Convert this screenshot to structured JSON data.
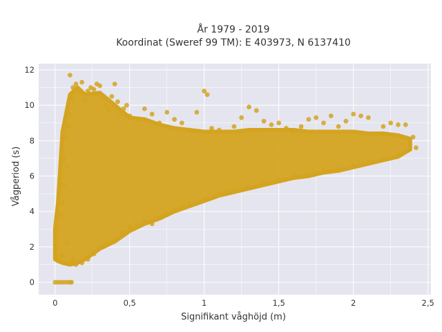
{
  "chart_data": {
    "type": "scatter",
    "title_lines": [
      "År 1979 - 2019",
      "Koordinat (Sweref 99 TM): E 403973, N 6137410"
    ],
    "xlabel": "Signifikant våghöjd (m)",
    "ylabel": "Vågperiod (s)",
    "xlim": [
      -0.11,
      2.52
    ],
    "ylim": [
      -0.7,
      12.35
    ],
    "x_ticks": [
      0,
      0.5,
      1,
      1.5,
      2,
      2.5
    ],
    "x_tick_labels": [
      "0",
      "0,5",
      "1",
      "1,5",
      "2",
      "2,5"
    ],
    "y_ticks": [
      0,
      2,
      4,
      6,
      8,
      10,
      12
    ],
    "y_tick_labels": [
      "0",
      "2",
      "4",
      "6",
      "8",
      "10",
      "12"
    ],
    "grid": true,
    "legend": "none",
    "marker_color": "#d4a420",
    "plot_background": "#e5e5ef",
    "series": [
      {
        "values_note": "",
        "points": [
          [
            0.0,
            0
          ],
          [
            0.02,
            0
          ],
          [
            0.04,
            0
          ],
          [
            0.06,
            0
          ],
          [
            0.08,
            0
          ],
          [
            0.1,
            0
          ],
          [
            0.11,
            0
          ],
          [
            0.01,
            1.4
          ],
          [
            0.01,
            2.0
          ],
          [
            0.01,
            2.6
          ],
          [
            0.02,
            3.0
          ],
          [
            0.03,
            1.2
          ],
          [
            0.04,
            3.8
          ],
          [
            0.05,
            1.5
          ],
          [
            0.05,
            4.5
          ],
          [
            0.06,
            5.5
          ],
          [
            0.06,
            7.0
          ],
          [
            0.07,
            8.2
          ],
          [
            0.07,
            9.0
          ],
          [
            0.08,
            2.2
          ],
          [
            0.08,
            6.5
          ],
          [
            0.09,
            8.8
          ],
          [
            0.1,
            9.5
          ],
          [
            0.1,
            1.1
          ],
          [
            0.11,
            10.4
          ],
          [
            0.12,
            1.3
          ],
          [
            0.12,
            11.0
          ],
          [
            0.1,
            11.7
          ],
          [
            0.14,
            11.2
          ],
          [
            0.16,
            10.8
          ],
          [
            0.18,
            11.3
          ],
          [
            0.2,
            10.3
          ],
          [
            0.22,
            10.8
          ],
          [
            0.24,
            11.0
          ],
          [
            0.26,
            10.9
          ],
          [
            0.28,
            11.2
          ],
          [
            0.3,
            11.1
          ],
          [
            0.32,
            10.4
          ],
          [
            0.34,
            10.0
          ],
          [
            0.36,
            9.8
          ],
          [
            0.38,
            10.5
          ],
          [
            0.4,
            11.2
          ],
          [
            0.42,
            10.2
          ],
          [
            0.44,
            9.5
          ],
          [
            0.46,
            9.8
          ],
          [
            0.48,
            10.0
          ],
          [
            0.5,
            9.4
          ],
          [
            0.55,
            9.2
          ],
          [
            0.6,
            9.8
          ],
          [
            0.65,
            9.5
          ],
          [
            0.7,
            9.0
          ],
          [
            0.75,
            9.6
          ],
          [
            0.8,
            9.2
          ],
          [
            0.85,
            9.0
          ],
          [
            0.9,
            8.6
          ],
          [
            0.95,
            9.6
          ],
          [
            1.0,
            10.8
          ],
          [
            1.02,
            10.6
          ],
          [
            1.05,
            8.7
          ],
          [
            1.1,
            8.6
          ],
          [
            1.15,
            8.5
          ],
          [
            1.2,
            8.8
          ],
          [
            1.25,
            9.3
          ],
          [
            1.3,
            9.9
          ],
          [
            1.35,
            9.7
          ],
          [
            1.4,
            9.1
          ],
          [
            1.45,
            8.9
          ],
          [
            1.5,
            9.0
          ],
          [
            1.55,
            8.7
          ],
          [
            1.6,
            8.5
          ],
          [
            1.65,
            8.8
          ],
          [
            1.7,
            9.2
          ],
          [
            1.75,
            9.3
          ],
          [
            1.8,
            9.0
          ],
          [
            1.85,
            9.4
          ],
          [
            1.9,
            8.8
          ],
          [
            1.95,
            9.1
          ],
          [
            2.0,
            9.5
          ],
          [
            2.05,
            9.4
          ],
          [
            2.1,
            9.3
          ],
          [
            2.2,
            8.8
          ],
          [
            2.25,
            9.0
          ],
          [
            2.3,
            8.9
          ],
          [
            2.35,
            8.9
          ],
          [
            2.4,
            8.2
          ],
          [
            2.42,
            7.6
          ],
          [
            0.14,
            1.0
          ],
          [
            0.18,
            1.1
          ],
          [
            0.22,
            1.3
          ],
          [
            0.26,
            1.6
          ],
          [
            0.3,
            2.0
          ],
          [
            0.34,
            2.2
          ],
          [
            0.4,
            2.4
          ],
          [
            0.45,
            2.8
          ],
          [
            0.5,
            3.1
          ],
          [
            0.55,
            3.3
          ],
          [
            0.6,
            3.5
          ],
          [
            0.65,
            3.3
          ],
          [
            0.7,
            3.7
          ],
          [
            0.75,
            3.9
          ],
          [
            0.8,
            4.1
          ],
          [
            0.9,
            4.4
          ],
          [
            1.0,
            4.7
          ],
          [
            1.1,
            5.0
          ],
          [
            1.2,
            5.2
          ],
          [
            1.3,
            5.4
          ],
          [
            1.4,
            5.6
          ],
          [
            1.5,
            5.8
          ],
          [
            1.6,
            6.0
          ],
          [
            1.7,
            6.1
          ],
          [
            1.8,
            6.3
          ],
          [
            1.9,
            6.4
          ],
          [
            2.0,
            6.6
          ],
          [
            2.1,
            6.8
          ],
          [
            2.2,
            7.0
          ],
          [
            2.3,
            7.2
          ]
        ]
      }
    ]
  }
}
